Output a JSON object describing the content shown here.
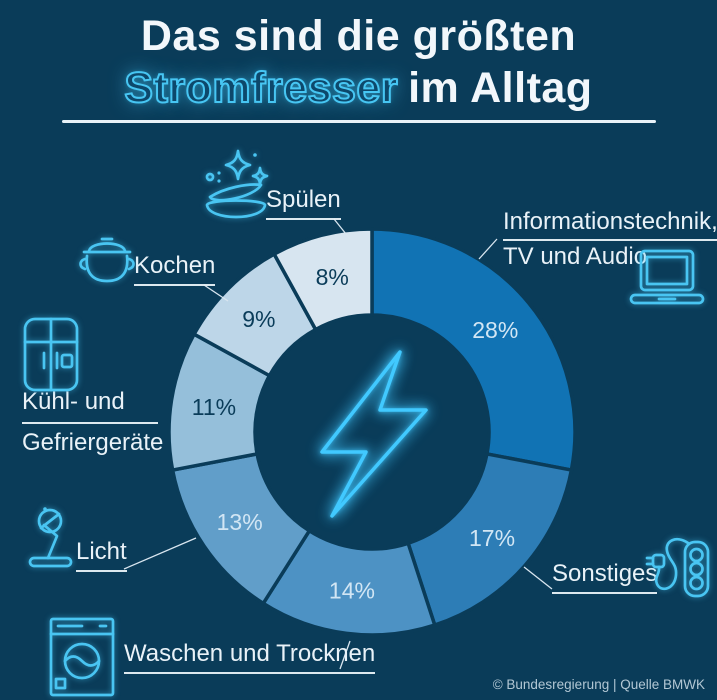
{
  "title": {
    "line1": "Das sind die größten",
    "highlight": "Stromfresser",
    "line2_rest": "im Alltag"
  },
  "colors": {
    "background": "#0a3c59",
    "neon_accent": "#47c6f3",
    "text_light": "#e9f2f8",
    "text_dark": "#0a3c59",
    "value_label_light": "#d2e6f4",
    "title_underline": "#e9f2f8"
  },
  "chart_data": {
    "type": "pie",
    "donut": true,
    "title": "Das sind die größten Stromfresser im Alltag",
    "unit": "%",
    "start_angle_deg": 0,
    "direction": "clockwise",
    "center_icon": "lightning-bolt",
    "segments": [
      {
        "id": "it_tv_audio",
        "label": "Informationstechnik, TV und Audio",
        "value": 28,
        "value_label": "28%",
        "color": "#1173b4",
        "text": "light",
        "icon": "laptop-icon"
      },
      {
        "id": "sonstiges",
        "label": "Sonstiges",
        "value": 17,
        "value_label": "17%",
        "color": "#2d7db6",
        "text": "light",
        "icon": "power-strip-icon"
      },
      {
        "id": "waschen_trocknen",
        "label": "Waschen und Trocknen",
        "value": 14,
        "value_label": "14%",
        "color": "#4d92c4",
        "text": "light",
        "icon": "washing-machine-icon"
      },
      {
        "id": "licht",
        "label": "Licht",
        "value": 13,
        "value_label": "13%",
        "color": "#619ec9",
        "text": "light",
        "icon": "desk-lamp-icon"
      },
      {
        "id": "kuehl_gefrier",
        "label": "Kühl- und Gefriergeräte",
        "value": 11,
        "value_label": "11%",
        "color": "#95bfda",
        "text": "dark",
        "icon": "fridge-icon"
      },
      {
        "id": "kochen",
        "label": "Kochen",
        "value": 9,
        "value_label": "9%",
        "color": "#bdd6e8",
        "text": "dark",
        "icon": "cooking-pot-icon"
      },
      {
        "id": "spuelen",
        "label": "Spülen",
        "value": 8,
        "value_label": "8%",
        "color": "#d7e5f0",
        "text": "dark",
        "icon": "dishes-icon"
      }
    ]
  },
  "callouts": {
    "spuelen": "Spülen",
    "kochen": "Kochen",
    "kuehl_line1": "Kühl- und",
    "kuehl_line2": "Gefriergeräte",
    "licht": "Licht",
    "waschen": "Waschen und Trocknen",
    "info_line1": "Informationstechnik,",
    "info_line2": "TV und Audio",
    "sonstiges": "Sonstiges"
  },
  "footer": {
    "credit": "© Bundesregierung | Quelle BMWK"
  }
}
